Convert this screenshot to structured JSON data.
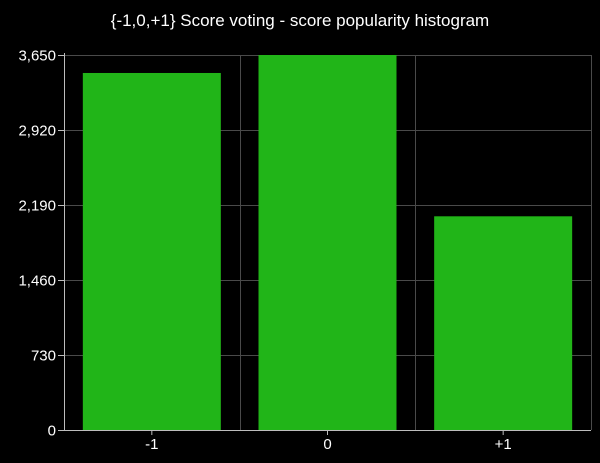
{
  "chart_data": {
    "type": "bar",
    "title": "{-1,0,+1} Score voting - score popularity histogram",
    "categories": [
      "-1",
      "0",
      "+1"
    ],
    "values": [
      3475,
      3650,
      2080
    ],
    "ylim": [
      0,
      3650
    ],
    "yticks": [
      0,
      730,
      1460,
      2190,
      2920,
      3650
    ],
    "ytick_labels": [
      "0",
      "730",
      "1,460",
      "2,190",
      "2,920",
      "3,650"
    ],
    "grid": true,
    "legend": "none"
  },
  "colors": {
    "background": "#000000",
    "bar": "#21b518",
    "grid": "#4a4a4a",
    "axis": "#bdbdbd",
    "text": "#ffffff"
  }
}
